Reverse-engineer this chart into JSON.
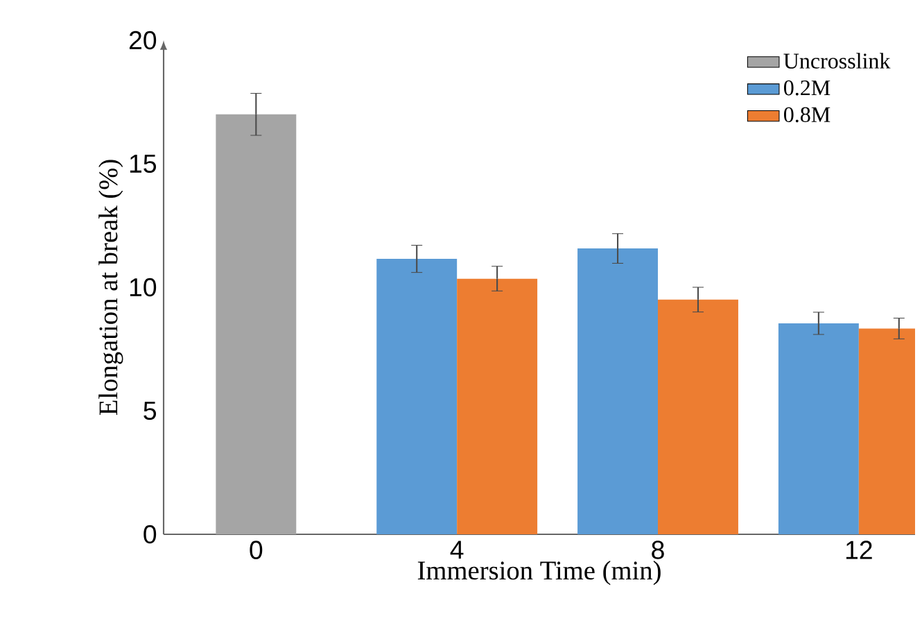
{
  "chart_data": {
    "type": "bar",
    "xlabel": "Immersion Time (min)",
    "ylabel": "Elongation at break (%)",
    "categories": [
      "0",
      "4",
      "8",
      "12"
    ],
    "series": [
      {
        "name": "Uncrosslink",
        "color": "#a5a5a5",
        "values": [
          17.0,
          null,
          null,
          null
        ],
        "errors": [
          0.85,
          null,
          null,
          null
        ]
      },
      {
        "name": "0.2M",
        "color": "#5b9bd5",
        "values": [
          null,
          11.15,
          11.57,
          8.54
        ],
        "errors": [
          null,
          0.55,
          0.6,
          0.45
        ]
      },
      {
        "name": "0.8M",
        "color": "#ed7d31",
        "values": [
          null,
          10.35,
          9.5,
          8.33
        ],
        "errors": [
          null,
          0.5,
          0.5,
          0.42
        ]
      }
    ],
    "ylim": [
      0,
      20
    ],
    "yticks": [
      0,
      5,
      10,
      15,
      20
    ],
    "legend": "top right",
    "grid": false
  }
}
